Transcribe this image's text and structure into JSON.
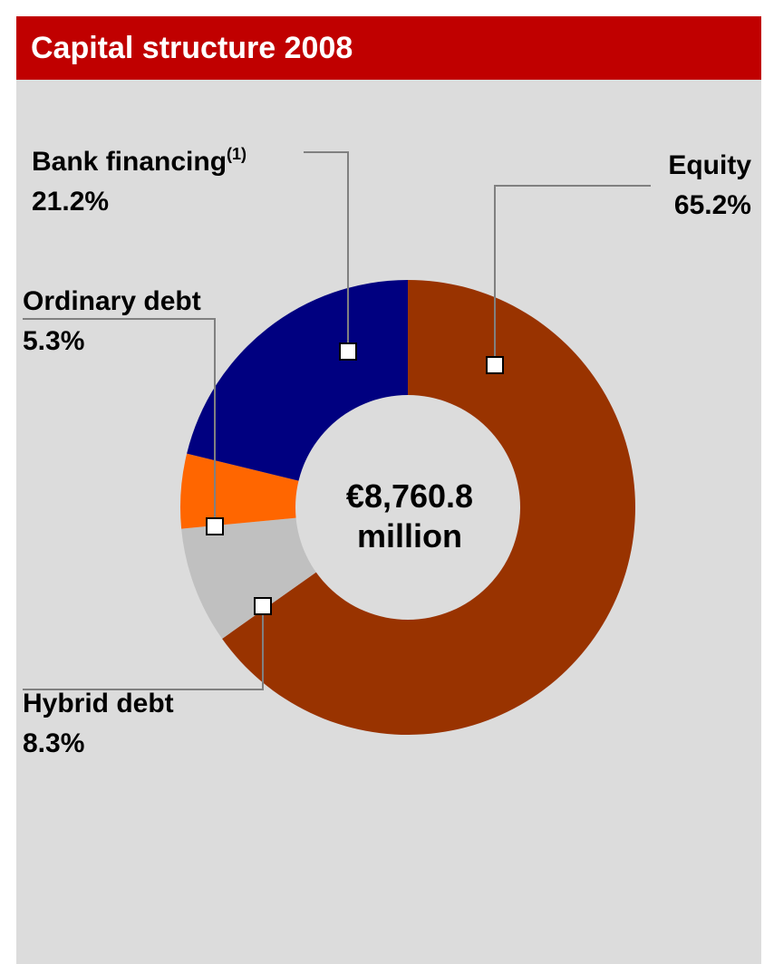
{
  "header": {
    "title": "Capital structure 2008"
  },
  "colors": {
    "header_bg": "#c00000",
    "panel_bg": "#dcdcdc",
    "equity": "#993300",
    "bank_financing": "#000080",
    "ordinary_debt": "#ff6600",
    "hybrid_debt": "#c0c0c0"
  },
  "chart_data": {
    "type": "pie",
    "title": "Capital structure 2008",
    "subtype": "donut",
    "center_label": {
      "line1": "€8,760.8",
      "line2": "million"
    },
    "slices": [
      {
        "name": "Equity",
        "value": 65.2,
        "value_label": "65.2%",
        "color": "#993300"
      },
      {
        "name": "Hybrid debt",
        "value": 8.3,
        "value_label": "8.3%",
        "color": "#c0c0c0"
      },
      {
        "name": "Ordinary debt",
        "value": 5.3,
        "value_label": "5.3%",
        "color": "#ff6600"
      },
      {
        "name": "Bank financing",
        "name_superscript": "(1)",
        "value": 21.2,
        "value_label": "21.2%",
        "color": "#000080"
      }
    ]
  }
}
